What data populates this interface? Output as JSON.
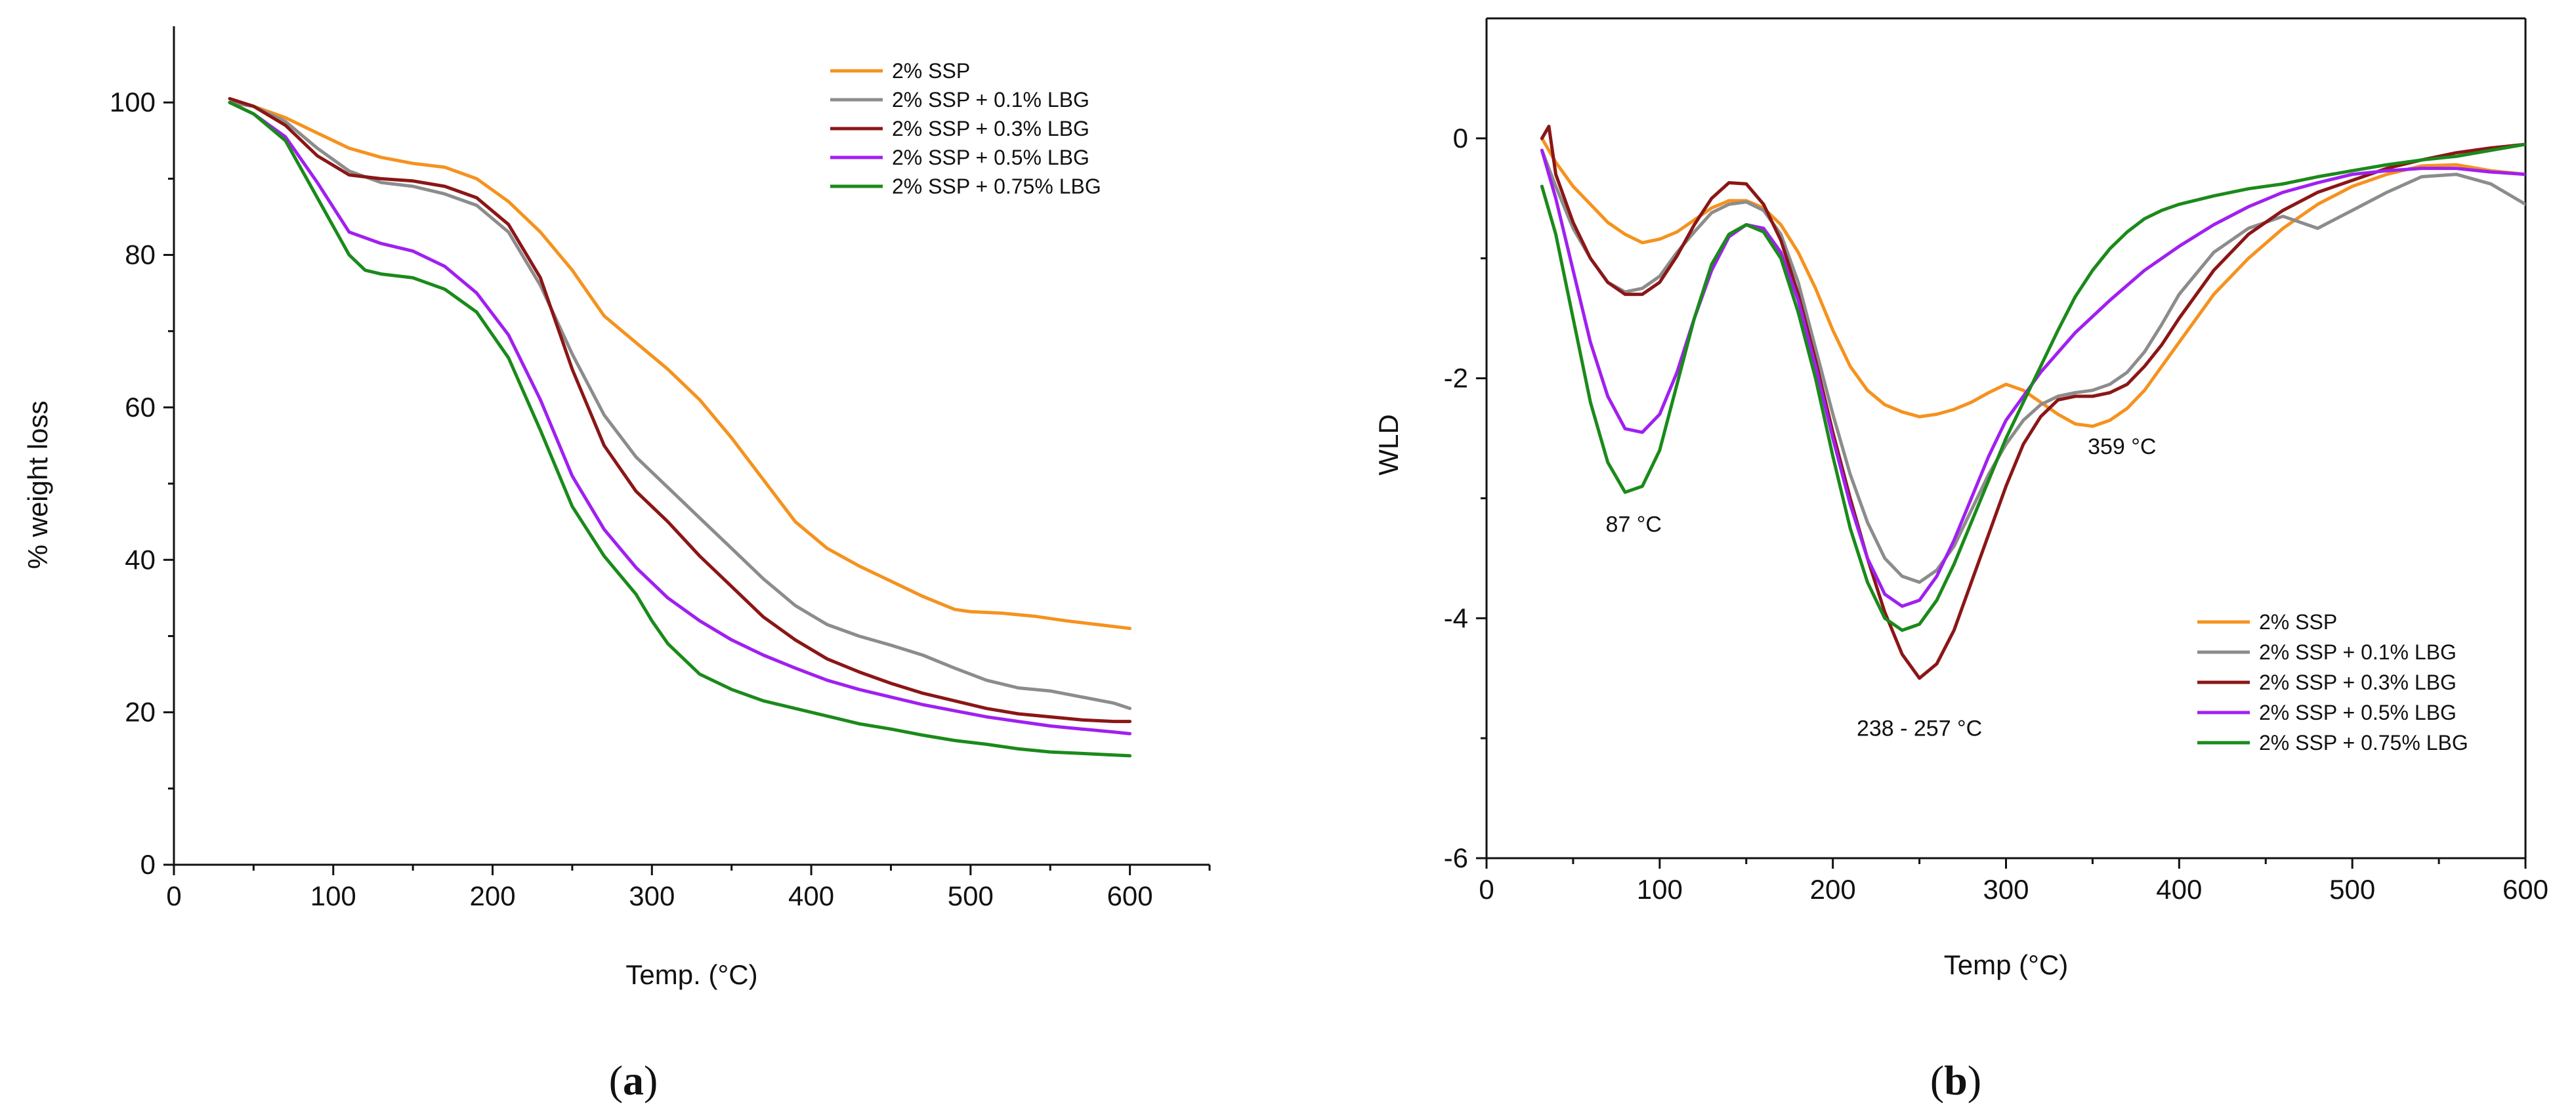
{
  "chart_data": [
    {
      "panel": "a",
      "type": "line",
      "caption_letter": "a",
      "xlabel": "Temp. (°C)",
      "ylabel": "% weight loss",
      "xlim": [
        0,
        650
      ],
      "ylim": [
        0,
        110
      ],
      "xticks": [
        0,
        100,
        200,
        300,
        400,
        500,
        600
      ],
      "yticks": [
        0,
        20,
        40,
        60,
        80,
        100
      ],
      "legend_position": "top-right",
      "series": [
        {
          "name": "2% SSP",
          "color": "#F5921E",
          "x": [
            35,
            50,
            70,
            90,
            110,
            130,
            150,
            170,
            190,
            210,
            230,
            250,
            270,
            290,
            310,
            330,
            350,
            370,
            390,
            410,
            430,
            450,
            470,
            490,
            500,
            520,
            540,
            560,
            580,
            600
          ],
          "y": [
            100,
            99.5,
            98,
            96,
            94,
            92.8,
            92,
            91.5,
            90,
            87,
            83,
            78,
            72,
            68.5,
            65,
            61,
            56,
            50.5,
            45,
            41.5,
            39.2,
            37.2,
            35.2,
            33.5,
            33.2,
            33,
            32.6,
            32,
            31.5,
            31
          ]
        },
        {
          "name": "2% SSP + 0.1% LBG",
          "color": "#8C8C8C",
          "x": [
            35,
            50,
            70,
            90,
            110,
            130,
            150,
            170,
            190,
            210,
            230,
            250,
            270,
            290,
            310,
            330,
            350,
            370,
            390,
            410,
            430,
            450,
            470,
            490,
            510,
            530,
            550,
            570,
            590,
            600
          ],
          "y": [
            100,
            99.5,
            97.5,
            94,
            91,
            89.5,
            89,
            88,
            86.5,
            83,
            76,
            67,
            59,
            53.5,
            49.5,
            45.5,
            41.5,
            37.5,
            34,
            31.5,
            30,
            28.8,
            27.5,
            25.8,
            24.2,
            23.2,
            22.8,
            22,
            21.2,
            20.5
          ]
        },
        {
          "name": "2% SSP + 0.3% LBG",
          "color": "#8B1616",
          "x": [
            35,
            50,
            70,
            90,
            110,
            130,
            150,
            170,
            190,
            210,
            230,
            250,
            270,
            290,
            310,
            330,
            350,
            370,
            390,
            410,
            430,
            450,
            470,
            490,
            510,
            530,
            550,
            570,
            590,
            600
          ],
          "y": [
            100.5,
            99.5,
            97,
            93,
            90.5,
            90,
            89.7,
            89,
            87.5,
            84,
            77,
            65,
            55,
            49,
            45,
            40.5,
            36.5,
            32.5,
            29.5,
            27,
            25.3,
            23.8,
            22.5,
            21.5,
            20.5,
            19.8,
            19.4,
            19,
            18.8,
            18.8
          ]
        },
        {
          "name": "2% SSP + 0.5% LBG",
          "color": "#A020F0",
          "x": [
            35,
            50,
            70,
            90,
            110,
            130,
            150,
            170,
            190,
            210,
            230,
            250,
            270,
            290,
            310,
            330,
            350,
            370,
            390,
            410,
            430,
            450,
            470,
            490,
            510,
            530,
            550,
            570,
            590,
            600
          ],
          "y": [
            100,
            98.5,
            95.5,
            89.5,
            83,
            81.5,
            80.5,
            78.5,
            75,
            69.5,
            61,
            51,
            44,
            39,
            35,
            32,
            29.5,
            27.5,
            25.8,
            24.2,
            23,
            22,
            21,
            20.2,
            19.4,
            18.8,
            18.2,
            17.8,
            17.4,
            17.2
          ]
        },
        {
          "name": "2% SSP + 0.75% LBG",
          "color": "#1A8A1A",
          "x": [
            35,
            50,
            70,
            90,
            110,
            120,
            130,
            150,
            170,
            190,
            210,
            230,
            250,
            270,
            290,
            300,
            310,
            330,
            350,
            370,
            390,
            410,
            430,
            450,
            470,
            490,
            510,
            530,
            550,
            570,
            590,
            600
          ],
          "y": [
            100,
            98.5,
            95,
            87.5,
            80,
            78,
            77.5,
            77,
            75.5,
            72.5,
            66.5,
            57,
            47,
            40.5,
            35.5,
            32,
            29,
            25,
            23,
            21.5,
            20.5,
            19.5,
            18.5,
            17.8,
            17,
            16.3,
            15.8,
            15.2,
            14.8,
            14.6,
            14.4,
            14.3
          ]
        }
      ],
      "annotations": []
    },
    {
      "panel": "b",
      "type": "line",
      "caption_letter": "b",
      "xlabel": "Temp (°C)",
      "ylabel": "WLD",
      "xlim": [
        0,
        600
      ],
      "ylim": [
        -6,
        1
      ],
      "xticks": [
        0,
        100,
        200,
        300,
        400,
        500,
        600
      ],
      "yticks": [
        -6,
        -4,
        -2,
        0
      ],
      "legend_position": "bottom-right",
      "series": [
        {
          "name": "2% SSP",
          "color": "#F5921E",
          "x": [
            32,
            40,
            50,
            60,
            70,
            80,
            90,
            100,
            110,
            120,
            130,
            140,
            150,
            160,
            170,
            180,
            190,
            200,
            210,
            220,
            230,
            240,
            250,
            260,
            270,
            280,
            290,
            300,
            310,
            320,
            330,
            340,
            350,
            360,
            370,
            380,
            390,
            400,
            420,
            440,
            460,
            480,
            500,
            520,
            540,
            560,
            580,
            600
          ],
          "y": [
            0,
            -0.2,
            -0.4,
            -0.55,
            -0.7,
            -0.8,
            -0.87,
            -0.84,
            -0.78,
            -0.68,
            -0.58,
            -0.52,
            -0.52,
            -0.58,
            -0.72,
            -0.95,
            -1.25,
            -1.6,
            -1.9,
            -2.1,
            -2.22,
            -2.28,
            -2.32,
            -2.3,
            -2.26,
            -2.2,
            -2.12,
            -2.05,
            -2.1,
            -2.2,
            -2.3,
            -2.38,
            -2.4,
            -2.35,
            -2.25,
            -2.1,
            -1.9,
            -1.7,
            -1.3,
            -1,
            -0.75,
            -0.55,
            -0.4,
            -0.3,
            -0.23,
            -0.22,
            -0.27,
            -0.3
          ]
        },
        {
          "name": "2% SSP + 0.1% LBG",
          "color": "#8C8C8C",
          "x": [
            32,
            40,
            50,
            60,
            70,
            80,
            90,
            100,
            110,
            120,
            130,
            140,
            150,
            160,
            170,
            180,
            190,
            200,
            210,
            220,
            230,
            240,
            250,
            260,
            270,
            280,
            290,
            300,
            310,
            320,
            330,
            340,
            350,
            360,
            370,
            380,
            390,
            400,
            420,
            440,
            460,
            480,
            500,
            520,
            540,
            560,
            580,
            600
          ],
          "y": [
            -0.1,
            -0.4,
            -0.75,
            -1,
            -1.2,
            -1.28,
            -1.25,
            -1.15,
            -0.95,
            -0.78,
            -0.62,
            -0.55,
            -0.53,
            -0.6,
            -0.8,
            -1.2,
            -1.75,
            -2.3,
            -2.8,
            -3.2,
            -3.5,
            -3.65,
            -3.7,
            -3.6,
            -3.4,
            -3.1,
            -2.8,
            -2.55,
            -2.35,
            -2.22,
            -2.15,
            -2.12,
            -2.1,
            -2.05,
            -1.95,
            -1.78,
            -1.55,
            -1.3,
            -0.95,
            -0.75,
            -0.65,
            -0.75,
            -0.6,
            -0.45,
            -0.32,
            -0.3,
            -0.38,
            -0.55
          ]
        },
        {
          "name": "2% SSP + 0.3% LBG",
          "color": "#8B1616",
          "x": [
            32,
            36,
            40,
            50,
            60,
            70,
            80,
            90,
            100,
            110,
            120,
            130,
            140,
            150,
            160,
            170,
            180,
            190,
            200,
            210,
            220,
            230,
            240,
            250,
            260,
            270,
            280,
            290,
            300,
            310,
            320,
            330,
            340,
            350,
            360,
            370,
            380,
            390,
            400,
            420,
            440,
            460,
            480,
            500,
            520,
            540,
            560,
            580,
            600
          ],
          "y": [
            0,
            0.1,
            -0.3,
            -0.7,
            -1,
            -1.2,
            -1.3,
            -1.3,
            -1.2,
            -0.98,
            -0.72,
            -0.5,
            -0.37,
            -0.38,
            -0.55,
            -0.85,
            -1.3,
            -1.85,
            -2.45,
            -3,
            -3.5,
            -3.95,
            -4.3,
            -4.5,
            -4.38,
            -4.1,
            -3.7,
            -3.3,
            -2.9,
            -2.55,
            -2.32,
            -2.18,
            -2.15,
            -2.15,
            -2.12,
            -2.05,
            -1.9,
            -1.72,
            -1.5,
            -1.1,
            -0.8,
            -0.6,
            -0.45,
            -0.35,
            -0.25,
            -0.18,
            -0.12,
            -0.08,
            -0.05
          ]
        },
        {
          "name": "2% SSP + 0.5% LBG",
          "color": "#A020F0",
          "x": [
            32,
            40,
            50,
            60,
            70,
            80,
            90,
            100,
            110,
            120,
            130,
            140,
            150,
            160,
            170,
            180,
            190,
            200,
            210,
            220,
            230,
            240,
            250,
            260,
            270,
            280,
            290,
            300,
            320,
            340,
            360,
            380,
            400,
            420,
            440,
            460,
            480,
            500,
            520,
            540,
            560,
            580,
            600
          ],
          "y": [
            -0.1,
            -0.5,
            -1.1,
            -1.7,
            -2.15,
            -2.42,
            -2.45,
            -2.3,
            -1.95,
            -1.5,
            -1.1,
            -0.82,
            -0.72,
            -0.75,
            -0.95,
            -1.35,
            -1.9,
            -2.5,
            -3.05,
            -3.5,
            -3.8,
            -3.9,
            -3.85,
            -3.65,
            -3.35,
            -3.0,
            -2.65,
            -2.35,
            -1.95,
            -1.62,
            -1.35,
            -1.1,
            -0.9,
            -0.72,
            -0.57,
            -0.45,
            -0.37,
            -0.3,
            -0.27,
            -0.25,
            -0.25,
            -0.28,
            -0.3
          ]
        },
        {
          "name": "2% SSP + 0.75% LBG",
          "color": "#1A8A1A",
          "x": [
            32,
            40,
            50,
            60,
            70,
            80,
            90,
            100,
            110,
            120,
            130,
            140,
            150,
            160,
            170,
            180,
            190,
            200,
            210,
            220,
            230,
            240,
            250,
            260,
            270,
            280,
            290,
            300,
            310,
            320,
            330,
            340,
            350,
            360,
            370,
            380,
            390,
            400,
            420,
            440,
            460,
            480,
            500,
            520,
            540,
            560,
            580,
            600
          ],
          "y": [
            -0.4,
            -0.8,
            -1.5,
            -2.2,
            -2.7,
            -2.95,
            -2.9,
            -2.6,
            -2.05,
            -1.5,
            -1.05,
            -0.8,
            -0.72,
            -0.78,
            -1.0,
            -1.45,
            -2.0,
            -2.65,
            -3.25,
            -3.7,
            -4.0,
            -4.1,
            -4.05,
            -3.85,
            -3.55,
            -3.2,
            -2.85,
            -2.5,
            -2.2,
            -1.9,
            -1.6,
            -1.32,
            -1.1,
            -0.92,
            -0.78,
            -0.67,
            -0.6,
            -0.55,
            -0.48,
            -0.42,
            -0.38,
            -0.32,
            -0.27,
            -0.22,
            -0.18,
            -0.15,
            -0.1,
            -0.05
          ]
        }
      ],
      "annotations": [
        {
          "text": "87 °C",
          "x": 85,
          "y": -3.28
        },
        {
          "text": "238 - 257 °C",
          "x": 250,
          "y": -4.98
        },
        {
          "text": "359 °C",
          "x": 367,
          "y": -2.63
        }
      ]
    }
  ],
  "colors": {
    "axis": "#111111",
    "background": "#ffffff"
  }
}
